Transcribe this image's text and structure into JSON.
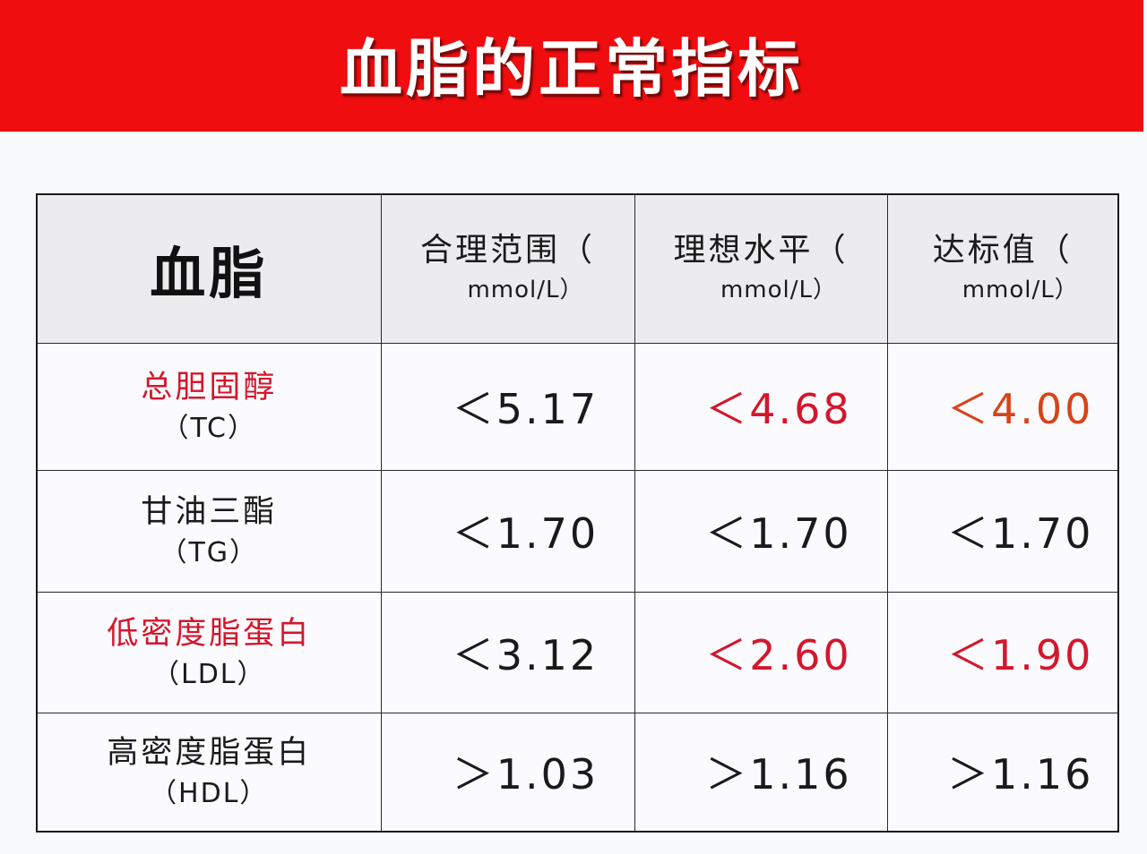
{
  "banner": {
    "title": "血脂的正常指标",
    "background_color": "#f00d0f",
    "text_color": "#ffffff"
  },
  "colors": {
    "highlight_red": "#d4162c",
    "highlight_orange": "#d8431a",
    "text_dark": "#1a1a1a",
    "header_bg": "#ececef",
    "border": "#2a2a2a"
  },
  "table": {
    "header": {
      "corner_label": "血脂",
      "columns": [
        {
          "label": "合理范围（",
          "unit": "mmol/L）"
        },
        {
          "label": "理想水平（",
          "unit": "mmol/L）"
        },
        {
          "label": "达标值（",
          "unit": "mmol/L）"
        }
      ]
    },
    "rows": [
      {
        "name": "总胆固醇",
        "abbr": "（TC）",
        "name_color": "#d4162c",
        "values": [
          {
            "text": "＜5.17",
            "color": "#1a1a1a"
          },
          {
            "text": "＜4.68",
            "color": "#d4162c"
          },
          {
            "text": "＜4.00",
            "color": "#d8431a"
          }
        ]
      },
      {
        "name": "甘油三酯",
        "abbr": "（TG）",
        "name_color": "#1a1a1a",
        "values": [
          {
            "text": "＜1.70",
            "color": "#1a1a1a"
          },
          {
            "text": "＜1.70",
            "color": "#1a1a1a"
          },
          {
            "text": "＜1.70",
            "color": "#1a1a1a"
          }
        ]
      },
      {
        "name": "低密度脂蛋白",
        "abbr": "（LDL）",
        "name_color": "#d4162c",
        "values": [
          {
            "text": "＜3.12",
            "color": "#1a1a1a"
          },
          {
            "text": "＜2.60",
            "color": "#d4162c"
          },
          {
            "text": "＜1.90",
            "color": "#d4162c"
          }
        ]
      },
      {
        "name": "高密度脂蛋白",
        "abbr": "（HDL）",
        "name_color": "#1a1a1a",
        "values": [
          {
            "text": "＞1.03",
            "color": "#1a1a1a"
          },
          {
            "text": "＞1.16",
            "color": "#1a1a1a"
          },
          {
            "text": "＞1.16",
            "color": "#1a1a1a"
          }
        ]
      }
    ]
  }
}
